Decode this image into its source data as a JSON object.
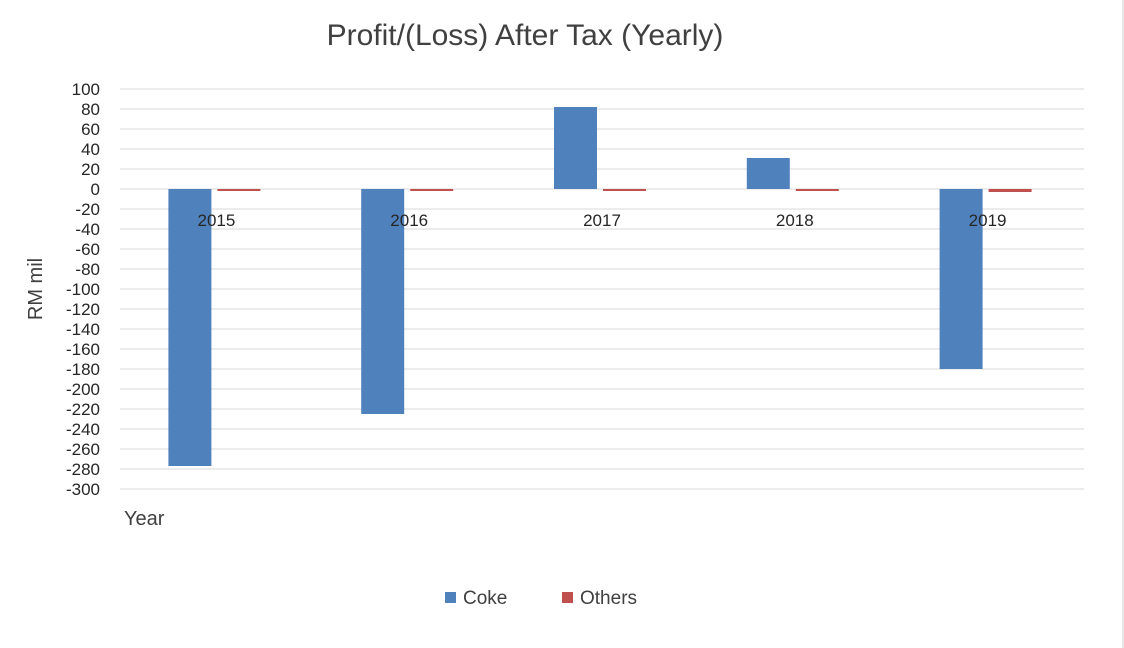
{
  "chart_data": {
    "type": "bar",
    "title": "Profit/(Loss) After Tax (Yearly)",
    "xlabel": "Year",
    "ylabel": "RM mil",
    "categories": [
      "2015",
      "2016",
      "2017",
      "2018",
      "2019"
    ],
    "series": [
      {
        "name": "Coke",
        "color": "#4f81bd",
        "values": [
          -277,
          -225,
          82,
          31,
          -180
        ]
      },
      {
        "name": "Others",
        "color": "#c0504d",
        "values": [
          -2,
          -2,
          -2,
          -2,
          -3
        ]
      }
    ],
    "ylim": [
      -300,
      100
    ],
    "yticks": [
      100,
      80,
      60,
      40,
      20,
      0,
      -20,
      -40,
      -60,
      -80,
      -100,
      -120,
      -140,
      -160,
      -180,
      -200,
      -220,
      -240,
      -260,
      -280,
      -300
    ],
    "grid": true,
    "legend_position": "bottom"
  }
}
